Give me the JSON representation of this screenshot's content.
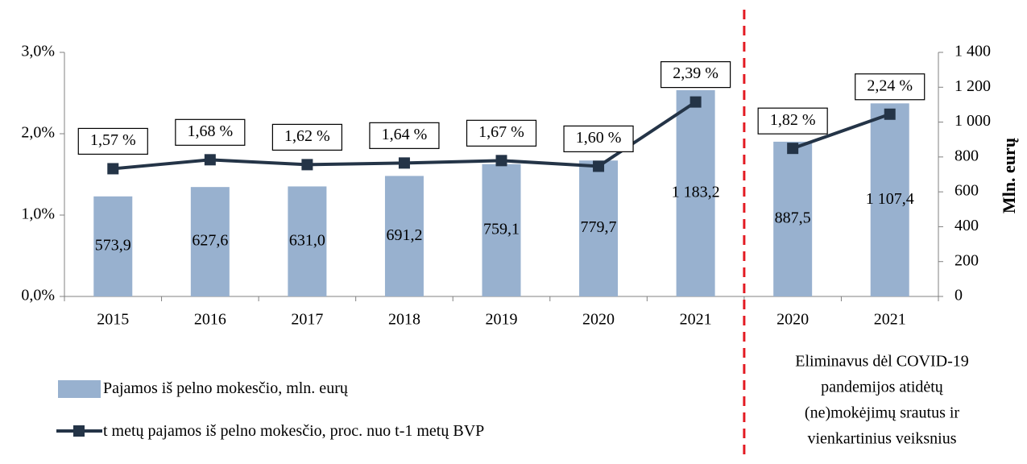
{
  "chart_data": {
    "type": "bar-line",
    "categories": [
      "2015",
      "2016",
      "2017",
      "2018",
      "2019",
      "2020",
      "2021",
      "2020",
      "2021"
    ],
    "series": [
      {
        "name": "Pajamos iš pelno mokesčio, mln. eurų",
        "type": "bar",
        "axis": "y2",
        "color": "#98b1cf",
        "values": [
          573.9,
          627.6,
          631.0,
          691.2,
          759.1,
          779.7,
          1183.2,
          887.5,
          1107.4
        ],
        "value_labels": [
          "573,9",
          "627,6",
          "631,0",
          "691,2",
          "759,1",
          "779,7",
          "1 183,2",
          "887,5",
          "1 107,4"
        ]
      },
      {
        "name": "t metų pajamos iš pelno mokesčio, proc. nuo t-1 metų BVP",
        "type": "line",
        "axis": "y",
        "color": "#243447",
        "values": [
          1.57,
          1.68,
          1.62,
          1.64,
          1.67,
          1.6,
          2.39,
          1.82,
          2.24
        ],
        "value_labels": [
          "1,57 %",
          "1,68 %",
          "1,62 %",
          "1,64 %",
          "1,67 %",
          "1,60 %",
          "2,39 %",
          "1,82 %",
          "2,24 %"
        ]
      }
    ],
    "line_breaks": [
      7
    ],
    "divider_color": "#e31b23",
    "annotation": [
      "Eliminavus dėl COVID-19",
      "pandemijos atidėtų",
      "(ne)mokėjimų srautus ir",
      "vienkartinius veiksnius"
    ],
    "ylim": [
      0,
      3
    ],
    "yticks": [
      {
        "value": 0,
        "label": "0,0%"
      },
      {
        "value": 1,
        "label": "1,0%"
      },
      {
        "value": 2,
        "label": "2,0%"
      },
      {
        "value": 3,
        "label": "3,0%"
      }
    ],
    "y2lim": [
      0,
      1400
    ],
    "y2ticks": [
      0,
      200,
      400,
      600,
      800,
      {
        "value": 1000,
        "label": "1 000"
      },
      {
        "value": 1200,
        "label": "1 200"
      },
      {
        "value": 1400,
        "label": "1 400"
      }
    ],
    "y2label": "Mln. eurų",
    "grid": false
  }
}
